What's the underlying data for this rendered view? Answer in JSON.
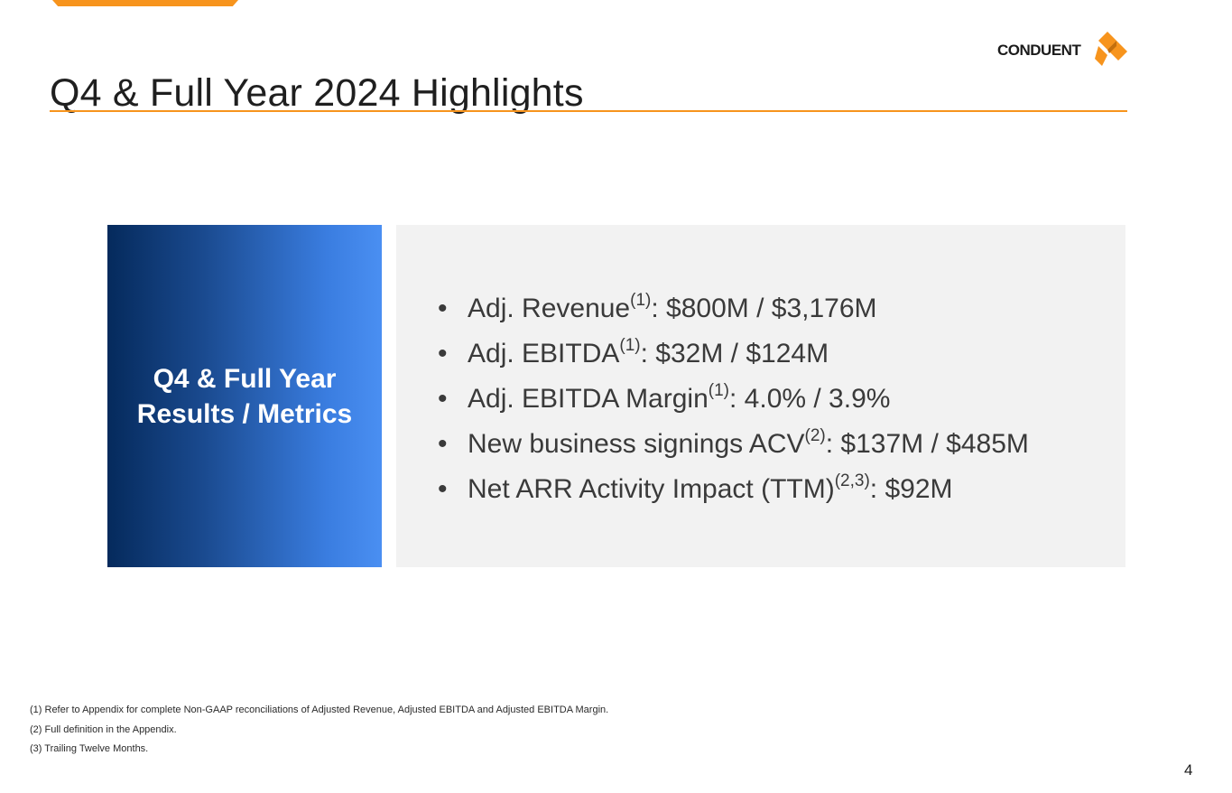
{
  "slide": {
    "title": "Q4 & Full Year 2024 Highlights",
    "logo_text": "CONDUENT",
    "page_number": "4"
  },
  "panel": {
    "heading": "Q4 & Full Year Results / Metrics"
  },
  "bullets": [
    {
      "label": "Adj. Revenue",
      "sup": "(1)",
      "value": ":  $800M / $3,176M"
    },
    {
      "label": "Adj. EBITDA",
      "sup": "(1)",
      "value": ": $32M / $124M"
    },
    {
      "label": "Adj. EBITDA Margin",
      "sup": "(1)",
      "value": ": 4.0% / 3.9%"
    },
    {
      "label": "New business signings ACV",
      "sup": "(2)",
      "value": ":  $137M / $485M"
    },
    {
      "label": "Net ARR Activity Impact (TTM)",
      "sup": "(2,3)",
      "value": ": $92M"
    }
  ],
  "footnotes": [
    "(1) Refer to Appendix for complete Non-GAAP reconciliations of Adjusted Revenue, Adjusted EBITDA and Adjusted EBITDA Margin.",
    "(2) Full definition in the Appendix.",
    "(3) Trailing Twelve Months."
  ],
  "colors": {
    "accent": "#f7941d",
    "panel_dark": "#052a5c",
    "panel_light": "#4a8ff2",
    "content_bg": "#f2f2f2"
  },
  "icons": {
    "logo_mark": "conduent-logo-icon"
  }
}
